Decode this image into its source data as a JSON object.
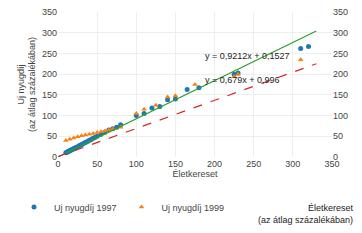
{
  "chart_data": {
    "type": "scatter",
    "xlabel": "Életkereset",
    "ylabel": "Uj nyugdíj\n(az átlag százalékában)",
    "xlim": [
      0,
      350
    ],
    "ylim": [
      0,
      350
    ],
    "xticks": [
      0,
      50,
      100,
      150,
      200,
      250,
      300,
      350
    ],
    "yticks": [
      0,
      50,
      100,
      150,
      200,
      250,
      300,
      350
    ],
    "y2lim": [
      0,
      350
    ],
    "y2ticks": [
      0,
      50,
      100,
      150,
      200,
      250,
      300,
      350
    ],
    "grid": true,
    "legend": "bottom",
    "series": [
      {
        "name": "Uj nyugdíj 1997",
        "type": "scatter",
        "marker": "circle",
        "x": [
          10,
          11,
          12,
          13,
          14,
          15,
          16,
          17,
          18,
          19,
          20,
          21,
          22,
          23,
          25,
          27,
          29,
          31,
          33,
          35,
          37,
          39,
          41,
          43,
          45,
          47,
          50,
          55,
          60,
          65,
          70,
          75,
          80,
          100,
          110,
          120,
          130,
          140,
          150,
          165,
          180,
          225,
          230,
          310,
          320
        ],
        "values": [
          10,
          11,
          12,
          13,
          14,
          15,
          16,
          17,
          18,
          19,
          20,
          21,
          22,
          23,
          25,
          27,
          29,
          31,
          33,
          35,
          37,
          39,
          41,
          43,
          45,
          47,
          50,
          55,
          60,
          65,
          68,
          72,
          78,
          100,
          105,
          118,
          122,
          138,
          140,
          163,
          167,
          200,
          203,
          262,
          267
        ]
      },
      {
        "name": "Uj nyugdíj 1999",
        "type": "scatter",
        "marker": "triangle-up",
        "x": [
          10,
          15,
          20,
          25,
          30,
          35,
          40,
          45,
          50,
          55,
          60,
          65,
          70,
          80,
          100,
          110,
          125,
          140,
          150,
          175,
          225,
          230,
          310
        ],
        "values": [
          40,
          43,
          46,
          49,
          51,
          53,
          55,
          57,
          59,
          61,
          63,
          65,
          68,
          72,
          105,
          115,
          125,
          145,
          148,
          175,
          194,
          200,
          235
        ]
      },
      {
        "type": "line",
        "line_style": "solid",
        "x": [
          0,
          330
        ],
        "values": [
          0.1527,
          304.1487
        ]
      },
      {
        "type": "line",
        "line_style": "dashed",
        "x": [
          0,
          330
        ],
        "values": [
          0.996,
          225.066
        ]
      }
    ],
    "annotations": [
      {
        "text": "y = 0,9212x + 0,1527",
        "x": 185,
        "y": 228
      },
      {
        "text": "y = 0,679x + 0,996",
        "x": 185,
        "y": 170
      },
      {
        "text": "Életkereset\n(az átlag százalékában)"
      }
    ]
  }
}
